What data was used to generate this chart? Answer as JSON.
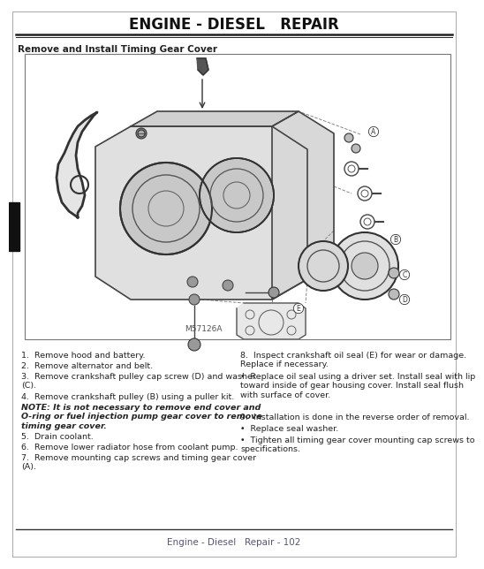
{
  "title": "ENGINE - DIESEL   REPAIR",
  "section_title": "Remove and Install Timing Gear Cover",
  "footer_text": "Engine - Diesel   Repair - 102",
  "bg_color": "#ffffff",
  "text_color": "#222222",
  "title_color": "#111111",
  "footer_line_color": "#222222",
  "diagram_label": "M57126A",
  "black_tab_color": "#111111",
  "left_column_items": [
    {
      "text": "1.  Remove hood and battery.",
      "bold": false,
      "italic": false,
      "indent": 0
    },
    {
      "text": "2.  Remove alternator and belt.",
      "bold": false,
      "italic": false,
      "indent": 0
    },
    {
      "text": "3.  Remove crankshaft pulley cap screw (D) and washer\n(C).",
      "bold": false,
      "italic": false,
      "indent": 0
    },
    {
      "text": "4.  Remove crankshaft pulley (B) using a puller kit.",
      "bold": false,
      "italic": false,
      "indent": 0
    },
    {
      "text": "NOTE: It is not necessary to remove end cover and\nO-ring or fuel injection pump gear cover to remove\ntiming gear cover.",
      "bold": true,
      "italic": true,
      "indent": 0
    },
    {
      "text": "5.  Drain coolant.",
      "bold": false,
      "italic": false,
      "indent": 0
    },
    {
      "text": "6.  Remove lower radiator hose from coolant pump.",
      "bold": false,
      "italic": false,
      "indent": 0
    },
    {
      "text": "7.  Remove mounting cap screws and timing gear cover\n(A).",
      "bold": false,
      "italic": false,
      "indent": 0
    }
  ],
  "right_column_items": [
    {
      "text": "8.  Inspect crankshaft oil seal (E) for wear or damage.\nReplace if necessary.",
      "bold": false,
      "italic": false,
      "indent": 0
    },
    {
      "text": "Replace oil seal using a driver set. Install seal with lip\ntoward inside of gear housing cover. Install seal flush\nwith surface of cover.",
      "bold": false,
      "italic": false,
      "indent": 1,
      "bullet": true
    },
    {
      "text": "9.  Installation is done in the reverse order of removal.",
      "bold": false,
      "italic": false,
      "indent": 0
    },
    {
      "text": "Replace seal washer.",
      "bold": false,
      "italic": false,
      "indent": 1,
      "bullet": true
    },
    {
      "text": "Tighten all timing gear cover mounting cap screws to\nspecifications.",
      "bold": false,
      "italic": false,
      "indent": 1,
      "bullet": true
    }
  ]
}
